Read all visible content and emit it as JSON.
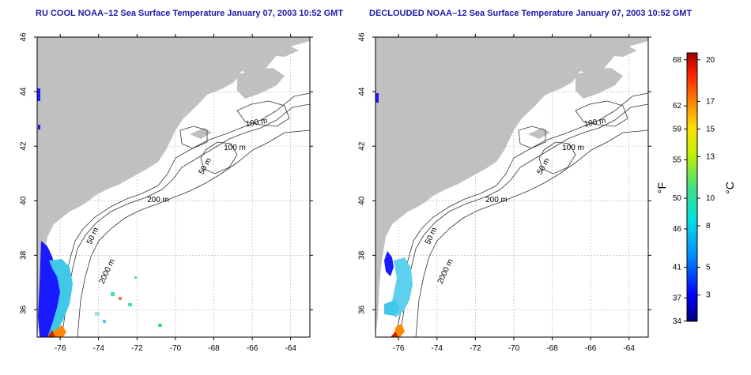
{
  "panels": [
    {
      "id": "left",
      "title": "RU COOL NOAA–12 Sea Surface Temperature January 07, 2003 10:52 GMT",
      "variant": "raw"
    },
    {
      "id": "right",
      "title": "DECLOUDED NOAA–12 Sea Surface Temperature January 07, 2003 10:52 GMT",
      "variant": "declouded"
    }
  ],
  "axes": {
    "lon_ticks": [
      -76,
      -74,
      -72,
      -70,
      -68,
      -66,
      -64
    ],
    "lat_ticks": [
      36,
      38,
      40,
      42,
      44,
      46
    ],
    "lon_range": [
      -77.2,
      -63.0
    ],
    "lat_range": [
      35.0,
      46.0
    ]
  },
  "contour_labels": [
    "100 m",
    "100 m",
    "50 m",
    "200 m",
    "50 m",
    "2000 m"
  ],
  "colorbar": {
    "fahrenheit_ticks": [
      68,
      62,
      59,
      55,
      50,
      46,
      41,
      37,
      34
    ],
    "celsius_ticks": [
      20,
      17,
      15,
      13,
      10,
      8,
      5,
      3
    ],
    "fahrenheit_label": "°F",
    "celsius_label": "°C",
    "range_c": [
      1.1,
      20.5
    ]
  },
  "colors": {
    "land": "#c0c0c0",
    "title": "#1a1aa8",
    "grid": "#b8b8b8"
  }
}
